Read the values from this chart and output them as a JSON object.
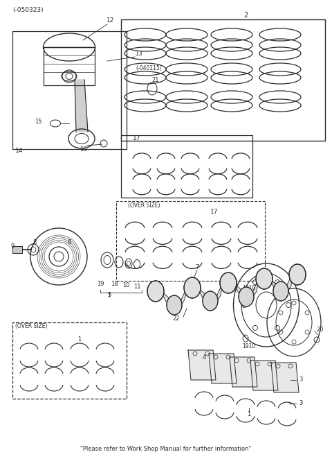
{
  "title": "(-050323)",
  "footer": "\"Please refer to Work Shop Manual for further information\"",
  "bg_color": "#ffffff",
  "line_color": "#2a2a2a",
  "fig_width": 4.8,
  "fig_height": 6.62,
  "dpi": 100
}
